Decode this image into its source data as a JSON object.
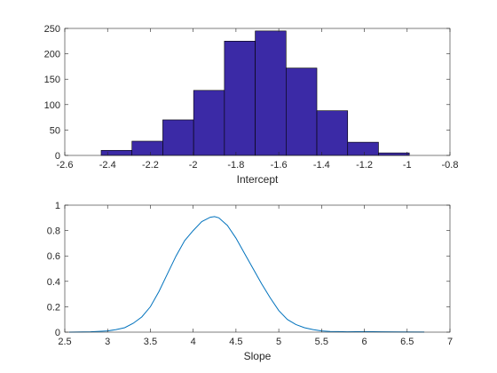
{
  "chart_data": [
    {
      "type": "bar",
      "subtype": "histogram",
      "xlabel": "Intercept",
      "ylabel": "",
      "xlim": [
        -2.6,
        -0.8
      ],
      "ylim": [
        0,
        250
      ],
      "xticks": [
        -2.6,
        -2.4,
        -2.2,
        -2,
        -1.8,
        -1.6,
        -1.4,
        -1.2,
        -1,
        -0.8
      ],
      "xtick_labels": [
        "-2.6",
        "-2.4",
        "-2.2",
        "-2",
        "-1.8",
        "-1.6",
        "-1.4",
        "-1.2",
        "-1",
        "-0.8"
      ],
      "yticks": [
        0,
        50,
        100,
        150,
        200,
        250
      ],
      "ytick_labels": [
        "0",
        "50",
        "100",
        "150",
        "200",
        "250"
      ],
      "bin_edges": [
        -2.43,
        -2.286,
        -2.142,
        -1.998,
        -1.854,
        -1.71,
        -1.566,
        -1.422,
        -1.278,
        -1.134,
        -0.99
      ],
      "values": [
        10,
        28,
        70,
        128,
        225,
        245,
        172,
        88,
        26,
        5
      ],
      "bar_color": "#3b2aa6",
      "edge_color": "#000000",
      "grid": false
    },
    {
      "type": "line",
      "xlabel": "Slope",
      "ylabel": "",
      "xlim": [
        2.5,
        7
      ],
      "ylim": [
        0,
        1
      ],
      "xticks": [
        2.5,
        3,
        3.5,
        4,
        4.5,
        5,
        5.5,
        6,
        6.5,
        7
      ],
      "xtick_labels": [
        "2.5",
        "3",
        "3.5",
        "4",
        "4.5",
        "5",
        "5.5",
        "6",
        "6.5",
        "7"
      ],
      "yticks": [
        0,
        0.2,
        0.4,
        0.6,
        0.8,
        1
      ],
      "ytick_labels": [
        "0",
        "0.2",
        "0.4",
        "0.6",
        "0.8",
        "1"
      ],
      "series": [
        {
          "x": [
            2.55,
            2.8,
            3.0,
            3.1,
            3.2,
            3.3,
            3.4,
            3.5,
            3.6,
            3.7,
            3.8,
            3.9,
            4.0,
            4.1,
            4.2,
            4.25,
            4.3,
            4.4,
            4.5,
            4.6,
            4.7,
            4.8,
            4.9,
            5.0,
            5.1,
            5.2,
            5.3,
            5.4,
            5.5,
            5.6,
            5.8,
            6.0,
            6.2,
            6.4,
            6.7
          ],
          "y": [
            0.0,
            0.003,
            0.01,
            0.02,
            0.035,
            0.07,
            0.12,
            0.2,
            0.32,
            0.46,
            0.6,
            0.72,
            0.8,
            0.87,
            0.905,
            0.91,
            0.9,
            0.84,
            0.74,
            0.62,
            0.5,
            0.38,
            0.27,
            0.17,
            0.1,
            0.06,
            0.035,
            0.02,
            0.01,
            0.005,
            0.003,
            0.004,
            0.003,
            0.002,
            0.001
          ]
        }
      ],
      "line_color": "#0072bd",
      "grid": false
    }
  ]
}
